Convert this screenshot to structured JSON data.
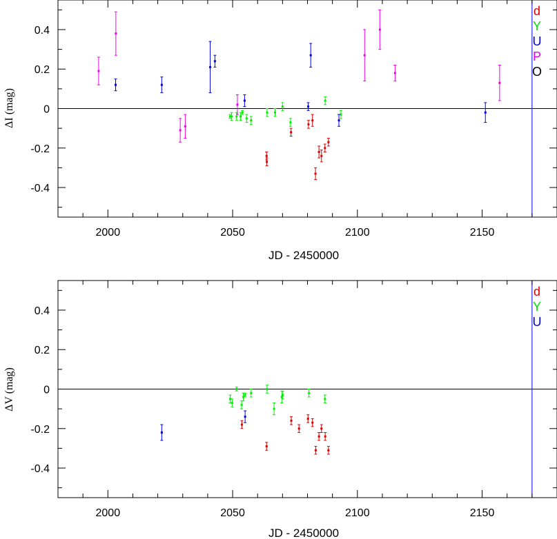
{
  "chart_data": [
    {
      "type": "scatter",
      "xlabel": "JD - 2450000",
      "ylabel": "ΔI (mag)",
      "xlim": [
        1980,
        2180
      ],
      "ylim": [
        -0.55,
        0.55
      ],
      "x_ticks": [
        2000,
        2050,
        2100,
        2150
      ],
      "x_tick_labels": [
        "2000",
        "2050",
        "2100",
        "2150"
      ],
      "y_ticks": [
        0.4,
        0.2,
        0,
        -0.2,
        -0.4
      ],
      "y_tick_labels": [
        "0.4",
        "0.2",
        "0",
        "-0.2",
        "-0.4"
      ],
      "reference_line_y": 0,
      "vertical_line_x": 2170,
      "vertical_line_color": "#0000ff",
      "legend_placement": "top-right",
      "series": [
        {
          "name": "d",
          "color": "#dd0000",
          "points": [
            [
              2063.6,
              -0.24,
              0.02
            ],
            [
              2063.7,
              -0.27,
              0.02
            ],
            [
              2073.4,
              -0.12,
              0.02
            ],
            [
              2080.4,
              -0.08,
              0.02
            ],
            [
              2082.0,
              -0.06,
              0.03
            ],
            [
              2083.2,
              -0.33,
              0.03
            ],
            [
              2084.6,
              -0.22,
              0.03
            ],
            [
              2085.6,
              -0.24,
              0.03
            ],
            [
              2087.0,
              -0.2,
              0.02
            ],
            [
              2088.4,
              -0.17,
              0.02
            ]
          ]
        },
        {
          "name": "Y",
          "color": "#00ee00",
          "points": [
            [
              2049.0,
              -0.04,
              0.01
            ],
            [
              2049.6,
              -0.04,
              0.02
            ],
            [
              2051.6,
              -0.04,
              0.02
            ],
            [
              2053.2,
              -0.04,
              0.02
            ],
            [
              2053.9,
              -0.02,
              0.01
            ],
            [
              2055.6,
              -0.05,
              0.02
            ],
            [
              2057.4,
              -0.06,
              0.02
            ],
            [
              2063.8,
              -0.02,
              0.02
            ],
            [
              2067.0,
              -0.02,
              0.02
            ],
            [
              2070.0,
              0.01,
              0.02
            ],
            [
              2073.2,
              -0.07,
              0.02
            ],
            [
              2087.1,
              0.04,
              0.02
            ],
            [
              2093.4,
              -0.03,
              0.02
            ]
          ]
        },
        {
          "name": "U",
          "color": "#0000dd",
          "points": [
            [
              2003.1,
              0.12,
              0.03
            ],
            [
              2021.6,
              0.12,
              0.04
            ],
            [
              2041.0,
              0.21,
              0.13
            ],
            [
              2042.9,
              0.24,
              0.03
            ],
            [
              2054.8,
              0.04,
              0.03
            ],
            [
              2080.3,
              0.01,
              0.02
            ],
            [
              2081.3,
              0.27,
              0.06
            ],
            [
              2092.6,
              -0.06,
              0.03
            ],
            [
              2151.3,
              -0.02,
              0.05
            ]
          ]
        },
        {
          "name": "P",
          "color": "#ee00ee",
          "points": [
            [
              1996.3,
              0.19,
              0.07
            ],
            [
              2003.2,
              0.38,
              0.11
            ],
            [
              2029.0,
              -0.11,
              0.06
            ],
            [
              2031.0,
              -0.09,
              0.06
            ],
            [
              2051.9,
              0.02,
              0.05
            ],
            [
              2102.9,
              0.27,
              0.13
            ],
            [
              2109.0,
              0.4,
              0.1
            ],
            [
              2115.1,
              0.18,
              0.04
            ],
            [
              2157.0,
              0.13,
              0.09
            ]
          ]
        }
      ],
      "legend": [
        {
          "label": "d",
          "color": "#dd0000"
        },
        {
          "label": "Y",
          "color": "#00dd00"
        },
        {
          "label": "U",
          "color": "#0000dd"
        },
        {
          "label": "P",
          "color": "#ee00ee"
        },
        {
          "label": "O",
          "color": "#000000"
        }
      ]
    },
    {
      "type": "scatter",
      "xlabel": "JD - 2450000",
      "ylabel": "ΔV (mag)",
      "xlim": [
        1980,
        2180
      ],
      "ylim": [
        -0.55,
        0.55
      ],
      "x_ticks": [
        2000,
        2050,
        2100,
        2150
      ],
      "x_tick_labels": [
        "2000",
        "2050",
        "2100",
        "2150"
      ],
      "y_ticks": [
        0.4,
        0.2,
        0,
        -0.2,
        -0.4
      ],
      "y_tick_labels": [
        "0.4",
        "0.2",
        "0",
        "-0.2",
        "-0.4"
      ],
      "reference_line_y": 0,
      "vertical_line_x": 2170,
      "vertical_line_color": "#0000ff",
      "legend_placement": "top-right",
      "series": [
        {
          "name": "d",
          "color": "#dd0000",
          "points": [
            [
              2053.7,
              -0.18,
              0.02
            ],
            [
              2063.6,
              -0.29,
              0.02
            ],
            [
              2073.5,
              -0.16,
              0.02
            ],
            [
              2076.6,
              -0.2,
              0.02
            ],
            [
              2080.2,
              -0.15,
              0.02
            ],
            [
              2082.0,
              -0.17,
              0.02
            ],
            [
              2083.3,
              -0.31,
              0.02
            ],
            [
              2084.6,
              -0.24,
              0.02
            ],
            [
              2085.6,
              -0.2,
              0.02
            ],
            [
              2087.1,
              -0.24,
              0.02
            ],
            [
              2088.4,
              -0.31,
              0.02
            ]
          ]
        },
        {
          "name": "Y",
          "color": "#00ee00",
          "points": [
            [
              2049.0,
              -0.05,
              0.02
            ],
            [
              2049.8,
              -0.07,
              0.02
            ],
            [
              2051.6,
              0.0,
              0.01
            ],
            [
              2053.6,
              -0.08,
              0.02
            ],
            [
              2054.3,
              -0.04,
              0.02
            ],
            [
              2055.0,
              -0.03,
              0.01
            ],
            [
              2057.4,
              -0.02,
              0.02
            ],
            [
              2063.8,
              0.0,
              0.02
            ],
            [
              2066.6,
              -0.1,
              0.03
            ],
            [
              2069.7,
              -0.04,
              0.03
            ],
            [
              2070.1,
              -0.03,
              0.02
            ],
            [
              2080.6,
              -0.02,
              0.02
            ],
            [
              2087.0,
              -0.05,
              0.02
            ]
          ]
        },
        {
          "name": "U",
          "color": "#0000dd",
          "points": [
            [
              2021.6,
              -0.22,
              0.04
            ],
            [
              2055.0,
              -0.14,
              0.03
            ]
          ]
        }
      ],
      "legend": [
        {
          "label": "d",
          "color": "#dd0000"
        },
        {
          "label": "Y",
          "color": "#00dd00"
        },
        {
          "label": "U",
          "color": "#0000dd"
        }
      ]
    }
  ]
}
